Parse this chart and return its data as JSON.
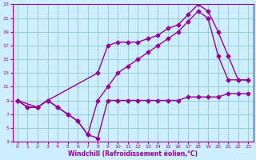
{
  "bg_color": "#cceeff",
  "line_color": "#990099",
  "grid_color": "#99cccc",
  "xlabel": "Windchill (Refroidissement éolien,°C)",
  "xlim": [
    -0.5,
    23.5
  ],
  "ylim": [
    3,
    23
  ],
  "xticks": [
    0,
    1,
    2,
    3,
    4,
    5,
    6,
    7,
    8,
    9,
    10,
    11,
    12,
    13,
    14,
    15,
    16,
    17,
    18,
    19,
    20,
    21,
    22,
    23
  ],
  "yticks": [
    3,
    5,
    7,
    9,
    11,
    13,
    15,
    17,
    19,
    21,
    23
  ],
  "line1_x": [
    0,
    1,
    2,
    3,
    4,
    5,
    6,
    7,
    8,
    9,
    10,
    11,
    12,
    13,
    14,
    15,
    16,
    17,
    18,
    19,
    20,
    21,
    22,
    23
  ],
  "line1_y": [
    9,
    8,
    8,
    9,
    8,
    7,
    6,
    4,
    3.5,
    9,
    9,
    9,
    9,
    9,
    9,
    9,
    9,
    9.5,
    9.5,
    9.5,
    9.5,
    10,
    10,
    10
  ],
  "line2_x": [
    0,
    1,
    2,
    3,
    4,
    5,
    6,
    7,
    8,
    9,
    10,
    11,
    12,
    13,
    14,
    15,
    16,
    17,
    18,
    19,
    20,
    21,
    22,
    23
  ],
  "line2_y": [
    9,
    8,
    8,
    9,
    8,
    7,
    6,
    4,
    9,
    11,
    13,
    14,
    15,
    16,
    17,
    18,
    19,
    20.5,
    22,
    21,
    15.5,
    12,
    12,
    12
  ],
  "line3_x": [
    0,
    2,
    3,
    8,
    9,
    10,
    11,
    12,
    13,
    14,
    15,
    16,
    17,
    18,
    19,
    20,
    21,
    22,
    23
  ],
  "line3_y": [
    9,
    8,
    9,
    13,
    17,
    17.5,
    17.5,
    17.5,
    18,
    18.5,
    19.5,
    20,
    21.5,
    23,
    22,
    19,
    15.5,
    12,
    12
  ],
  "marker": "D",
  "markersize": 2.5,
  "linewidth": 1.0
}
